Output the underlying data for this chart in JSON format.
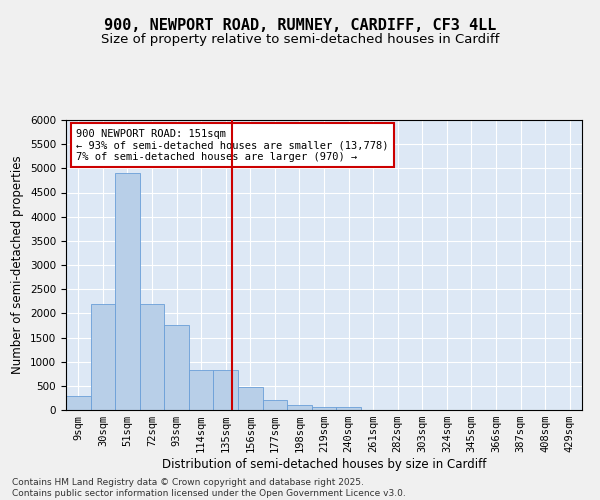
{
  "title_line1": "900, NEWPORT ROAD, RUMNEY, CARDIFF, CF3 4LL",
  "title_line2": "Size of property relative to semi-detached houses in Cardiff",
  "xlabel": "Distribution of semi-detached houses by size in Cardiff",
  "ylabel": "Number of semi-detached properties",
  "bar_labels": [
    "9sqm",
    "30sqm",
    "51sqm",
    "72sqm",
    "93sqm",
    "114sqm",
    "135sqm",
    "156sqm",
    "177sqm",
    "198sqm",
    "219sqm",
    "240sqm",
    "261sqm",
    "282sqm",
    "303sqm",
    "324sqm",
    "345sqm",
    "366sqm",
    "387sqm",
    "408sqm",
    "429sqm"
  ],
  "bar_values": [
    300,
    2200,
    4900,
    2200,
    1750,
    820,
    820,
    480,
    200,
    100,
    70,
    55,
    0,
    0,
    0,
    0,
    0,
    0,
    0,
    0,
    0
  ],
  "bar_color": "#b8cfe8",
  "bar_edge_color": "#6a9fd8",
  "vline_color": "#cc0000",
  "vline_x": 6.762,
  "annotation_text": "900 NEWPORT ROAD: 151sqm\n← 93% of semi-detached houses are smaller (13,778)\n7% of semi-detached houses are larger (970) →",
  "annotation_box_color": "#ffffff",
  "annotation_box_edge": "#cc0000",
  "ylim": [
    0,
    6000
  ],
  "yticks": [
    0,
    500,
    1000,
    1500,
    2000,
    2500,
    3000,
    3500,
    4000,
    4500,
    5000,
    5500,
    6000
  ],
  "background_color": "#dde8f5",
  "grid_color": "#ffffff",
  "fig_bg_color": "#f0f0f0",
  "footer_line1": "Contains HM Land Registry data © Crown copyright and database right 2025.",
  "footer_line2": "Contains public sector information licensed under the Open Government Licence v3.0.",
  "title_fontsize": 11,
  "subtitle_fontsize": 9.5,
  "axis_label_fontsize": 8.5,
  "tick_fontsize": 7.5,
  "annotation_fontsize": 7.5,
  "footer_fontsize": 6.5
}
